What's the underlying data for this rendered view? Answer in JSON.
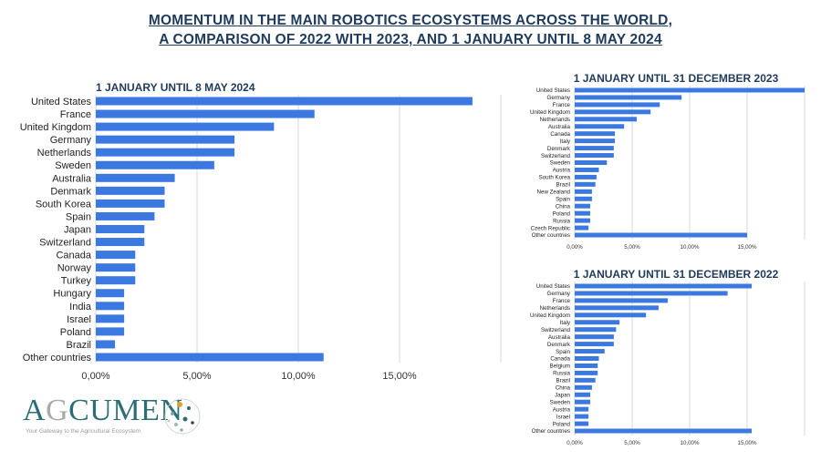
{
  "header": {
    "title_line1": "MOMENTUM IN THE MAIN ROBOTICS ECOSYSTEMS ACROSS THE WORLD,",
    "title_line2": "A COMPARISON OF 2022 WITH 2023, AND 1 JANUARY UNTIL 8 MAY 2024"
  },
  "logo": {
    "text_a": "A",
    "text_g": "G",
    "text_rest": "CUMEN",
    "tagline": "Your Gateway to the Agricultural Ecosystem"
  },
  "colors": {
    "bar": "#3b78e0",
    "title": "#1f3b5c",
    "grid": "#d9d9d9"
  },
  "chart_data": [
    {
      "type": "bar",
      "orientation": "horizontal",
      "title": "1 JANUARY UNTIL 8 MAY 2024",
      "categories": [
        "United States",
        "France",
        "United Kingdom",
        "Germany",
        "Netherlands",
        "Sweden",
        "Australia",
        "Denmark",
        "South Korea",
        "Spain",
        "Japan",
        "Switzerland",
        "Canada",
        "Norway",
        "Turkey",
        "Hungary",
        "India",
        "Israel",
        "Poland",
        "Brazil",
        "Other countries"
      ],
      "values": [
        18.6,
        10.8,
        8.8,
        6.85,
        6.85,
        5.85,
        3.9,
        3.4,
        3.4,
        2.9,
        2.4,
        2.4,
        1.95,
        1.95,
        1.95,
        1.4,
        1.4,
        1.4,
        1.4,
        0.95,
        11.25
      ],
      "unit": "%",
      "xlim": [
        0,
        20
      ],
      "xticks": [
        "0,00%",
        "5,00%",
        "10,00%",
        "15,00%"
      ],
      "grid": true
    },
    {
      "type": "bar",
      "orientation": "horizontal",
      "title": "1 JANUARY UNTIL 31 DECEMBER 2023",
      "categories": [
        "United States",
        "Germany",
        "France",
        "United Kingdom",
        "Netherlands",
        "Australia",
        "Canada",
        "Italy",
        "Denmark",
        "Switzerland",
        "Sweden",
        "Austria",
        "South Korea",
        "Brazil",
        "New Zealand",
        "Spain",
        "China",
        "Poland",
        "Russia",
        "Czech Republic",
        "Other countries"
      ],
      "values": [
        20.0,
        9.3,
        7.4,
        6.6,
        5.4,
        4.3,
        3.5,
        3.5,
        3.4,
        3.4,
        2.8,
        2.1,
        1.9,
        1.8,
        1.5,
        1.5,
        1.35,
        1.35,
        1.35,
        1.2,
        15.0
      ],
      "unit": "%",
      "xlim": [
        0,
        20
      ],
      "xticks": [
        "0,00%",
        "5,00%",
        "10,00%",
        "15,00%"
      ],
      "grid": true
    },
    {
      "type": "bar",
      "orientation": "horizontal",
      "title": "1 JANUARY UNTIL 31 DECEMBER 2022",
      "categories": [
        "United States",
        "Germany",
        "France",
        "Netherlands",
        "United Kingdom",
        "Italy",
        "Switzerland",
        "Australia",
        "Denmark",
        "Spain",
        "Canada",
        "Belgium",
        "Russia",
        "Brazil",
        "China",
        "Japan",
        "Sweden",
        "Austria",
        "Israel",
        "Poland",
        "Other countries"
      ],
      "values": [
        15.4,
        13.3,
        8.1,
        7.3,
        6.2,
        3.9,
        3.6,
        3.4,
        3.4,
        2.6,
        2.1,
        2.0,
        2.0,
        1.8,
        1.5,
        1.35,
        1.35,
        1.2,
        1.2,
        1.2,
        15.4
      ],
      "unit": "%",
      "xlim": [
        0,
        20
      ],
      "xticks": [
        "0,00%",
        "5,00%",
        "10,00%",
        "15,00%"
      ],
      "grid": true
    }
  ]
}
